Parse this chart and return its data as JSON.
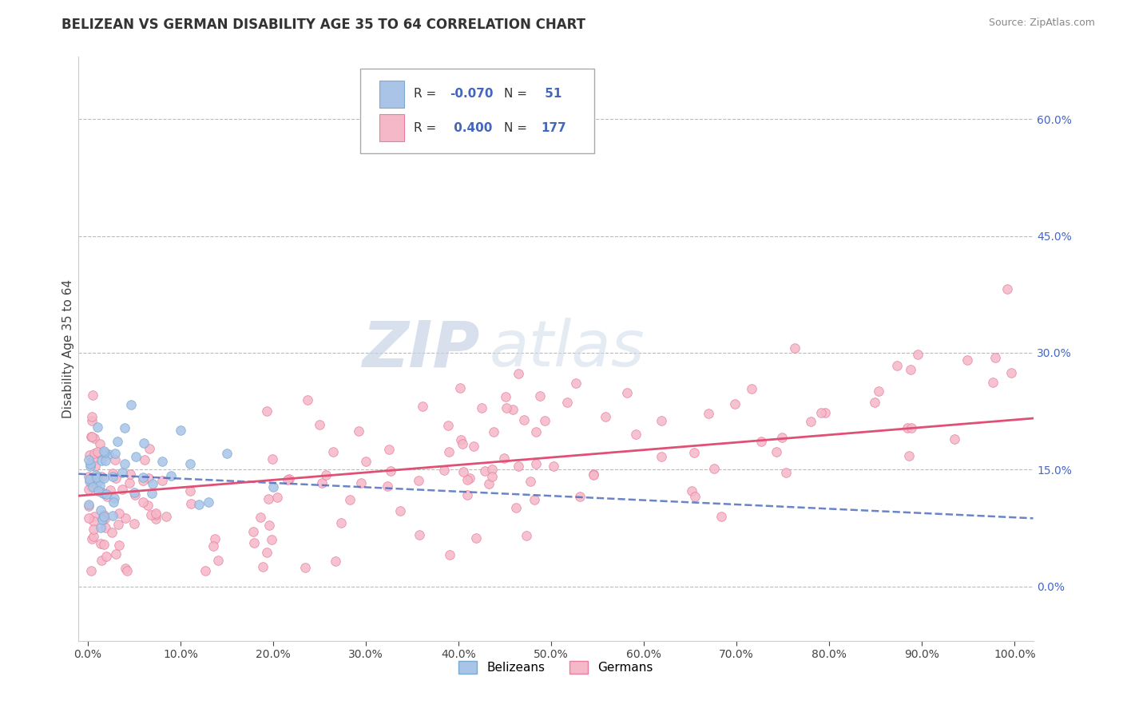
{
  "title": "BELIZEAN VS GERMAN DISABILITY AGE 35 TO 64 CORRELATION CHART",
  "source_text": "Source: ZipAtlas.com",
  "ylabel": "Disability Age 35 to 64",
  "xlim": [
    -0.01,
    1.02
  ],
  "ylim": [
    -0.07,
    0.68
  ],
  "xticks": [
    0.0,
    0.1,
    0.2,
    0.3,
    0.4,
    0.5,
    0.6,
    0.7,
    0.8,
    0.9,
    1.0
  ],
  "xticklabels": [
    "0.0%",
    "10.0%",
    "20.0%",
    "30.0%",
    "40.0%",
    "50.0%",
    "60.0%",
    "70.0%",
    "80.0%",
    "90.0%",
    "100.0%"
  ],
  "yticks": [
    0.0,
    0.15,
    0.3,
    0.45,
    0.6
  ],
  "yticklabels": [
    "0.0%",
    "15.0%",
    "30.0%",
    "45.0%",
    "60.0%"
  ],
  "grid_color": "#bbbbbb",
  "background_color": "#ffffff",
  "watermark_ZIP": "ZIP",
  "watermark_atlas": "atlas",
  "belizean_color": "#aac4e8",
  "belizean_edge_color": "#7aaad0",
  "german_color": "#f5b8c8",
  "german_edge_color": "#e87fa0",
  "belizean_R": -0.07,
  "belizean_N": 51,
  "german_R": 0.4,
  "german_N": 177,
  "legend_label_belizean": "Belizeans",
  "legend_label_german": "Germans",
  "title_fontsize": 12,
  "axis_label_fontsize": 11,
  "tick_fontsize": 10,
  "marker_size": 70,
  "trend_blue_color": "#4466bb",
  "trend_pink_color": "#e05075",
  "blue_R_color": "#4466bb",
  "pink_R_color": "#e05075"
}
